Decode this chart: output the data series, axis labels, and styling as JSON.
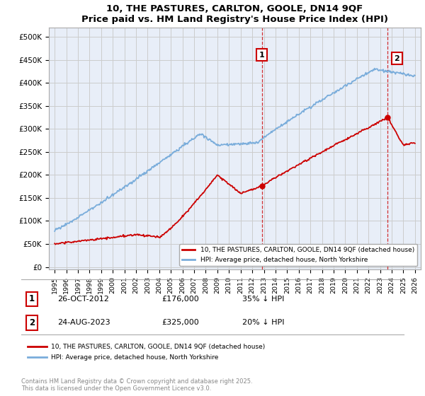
{
  "title": "10, THE PASTURES, CARLTON, GOOLE, DN14 9QF",
  "subtitle": "Price paid vs. HM Land Registry's House Price Index (HPI)",
  "ylabel_ticks": [
    0,
    50000,
    100000,
    150000,
    200000,
    250000,
    300000,
    350000,
    400000,
    450000,
    500000
  ],
  "ylabel_labels": [
    "£0",
    "£50K",
    "£100K",
    "£150K",
    "£200K",
    "£250K",
    "£300K",
    "£350K",
    "£400K",
    "£450K",
    "£500K"
  ],
  "xlim": [
    1994.5,
    2026.5
  ],
  "ylim": [
    -5000,
    520000
  ],
  "sale1_x": 2012.82,
  "sale1_y": 176000,
  "sale2_x": 2023.65,
  "sale2_y": 325000,
  "red_color": "#cc0000",
  "blue_color": "#7aaddb",
  "grid_color": "#cccccc",
  "background_color": "#e8eef8",
  "legend_label_red": "10, THE PASTURES, CARLTON, GOOLE, DN14 9QF (detached house)",
  "legend_label_blue": "HPI: Average price, detached house, North Yorkshire",
  "footer": "Contains HM Land Registry data © Crown copyright and database right 2025.\nThis data is licensed under the Open Government Licence v3.0."
}
